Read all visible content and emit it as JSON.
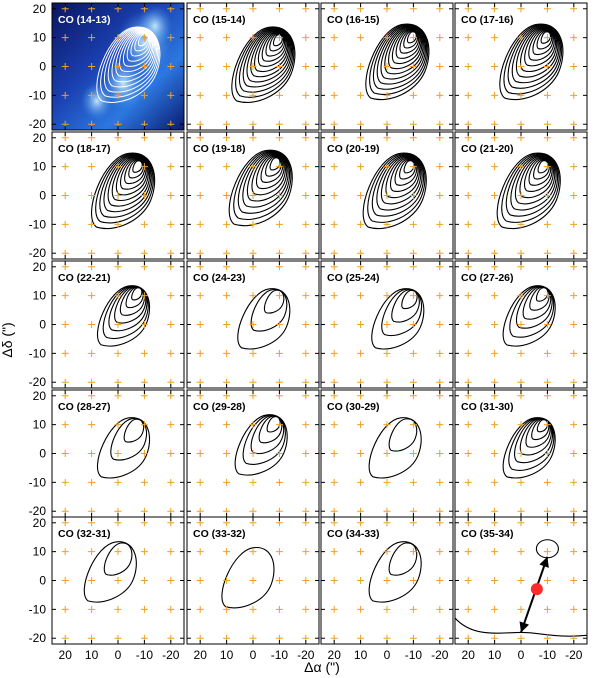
{
  "chart_data": {
    "type": "contour",
    "layout": "5x4 grid of panels",
    "xlabel": "Δα (\")",
    "ylabel": "Δδ (\")",
    "xticks": [
      "20",
      "10",
      "0",
      "-10",
      "-20"
    ],
    "yticks": [
      "20",
      "10",
      "0",
      "-10",
      "-20"
    ],
    "xlim": [
      25,
      -25
    ],
    "ylim": [
      -22,
      22
    ],
    "grid_marker_color": "#f0a020",
    "background_colormap_first_panel": [
      "#0a1560",
      "#1a3fb0",
      "#2c78e0",
      "#9fd4ff"
    ],
    "panels": [
      {
        "label": "CO (14-13)",
        "peak": [
          -10,
          10
        ],
        "levels": 12,
        "style": "filled"
      },
      {
        "label": "CO (15-14)",
        "peak": [
          -10,
          10
        ],
        "levels": 12,
        "style": "dense"
      },
      {
        "label": "CO (16-15)",
        "peak": [
          -10,
          11
        ],
        "levels": 12,
        "style": "dense"
      },
      {
        "label": "CO (17-16)",
        "peak": [
          -10,
          11
        ],
        "levels": 11,
        "style": "dense"
      },
      {
        "label": "CO (18-17)",
        "peak": [
          -8,
          11
        ],
        "levels": 11,
        "style": "dense"
      },
      {
        "label": "CO (19-18)",
        "peak": [
          -9,
          12
        ],
        "levels": 10,
        "style": "dense"
      },
      {
        "label": "CO (20-19)",
        "peak": [
          -9,
          11
        ],
        "levels": 10,
        "style": "dense"
      },
      {
        "label": "CO (21-20)",
        "peak": [
          -9,
          11
        ],
        "levels": 10,
        "style": "dense"
      },
      {
        "label": "CO (22-21)",
        "peak": [
          -8,
          12
        ],
        "levels": 7,
        "style": "medium"
      },
      {
        "label": "CO (24-23)",
        "peak": [
          -10,
          11
        ],
        "levels": 3,
        "style": "sparse"
      },
      {
        "label": "CO (25-24)",
        "peak": [
          -10,
          11
        ],
        "levels": 4,
        "style": "sparse"
      },
      {
        "label": "CO (27-26)",
        "peak": [
          -9,
          12
        ],
        "levels": 6,
        "style": "medium"
      },
      {
        "label": "CO (28-27)",
        "peak": [
          -8,
          11
        ],
        "levels": 3,
        "style": "sparse"
      },
      {
        "label": "CO (29-28)",
        "peak": [
          -9,
          12
        ],
        "levels": 5,
        "style": "medium"
      },
      {
        "label": "CO (30-29)",
        "peak": [
          -9,
          11
        ],
        "levels": 2,
        "style": "sparse"
      },
      {
        "label": "CO (31-30)",
        "peak": [
          -9,
          11
        ],
        "levels": 7,
        "style": "medium"
      },
      {
        "label": "CO (32-31)",
        "peak": [
          -3,
          12
        ],
        "levels": 2,
        "style": "sparse"
      },
      {
        "label": "CO (33-32)",
        "peak": [
          -4,
          10
        ],
        "levels": 1,
        "style": "sparse"
      },
      {
        "label": "CO (34-33)",
        "peak": [
          -9,
          12
        ],
        "levels": 2,
        "style": "sparse"
      },
      {
        "label": "CO (35-34)",
        "peak": [
          -10,
          11
        ],
        "levels": 1,
        "style": "arrow"
      }
    ],
    "arrow_panel_marker": {
      "position": [
        -6,
        -3
      ],
      "color": "#ff2a2a"
    },
    "arrow_endpoints": [
      [
        -10,
        11
      ],
      [
        0,
        -18
      ]
    ]
  }
}
